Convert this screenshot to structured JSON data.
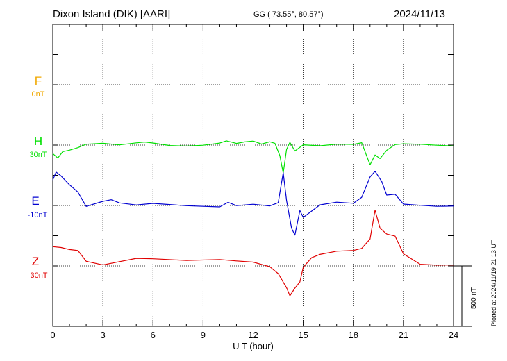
{
  "header": {
    "station": "Dixon Island (DIK)  [AARI]",
    "coords": "GG ( 73.55°,  80.57°)",
    "date": "2024/11/13"
  },
  "components": [
    {
      "name": "F",
      "baseline": "0nT",
      "color": "#f0a800"
    },
    {
      "name": "H",
      "baseline": "30nT",
      "color": "#00e000"
    },
    {
      "name": "E",
      "baseline": "-10nT",
      "color": "#0000d0"
    },
    {
      "name": "Z",
      "baseline": "30nT",
      "color": "#e00000"
    }
  ],
  "scale_label": "500 nT",
  "plotted_note": "Plotted at 2024/11/19 21:13 UT",
  "chart_data": {
    "type": "line",
    "xlabel": "U T (hour)",
    "xlim": [
      0,
      24
    ],
    "xticks": [
      "0",
      "3",
      "6",
      "9",
      "12",
      "15",
      "18",
      "21",
      "24"
    ],
    "grid": true,
    "series": [
      {
        "name": "F",
        "color": "#f0a800",
        "x": [],
        "y": []
      },
      {
        "name": "H",
        "color": "#00e000",
        "x": [
          0,
          0.3,
          0.6,
          1.0,
          1.5,
          2.0,
          3.0,
          4.0,
          5.0,
          5.5,
          6.0,
          7.0,
          8.0,
          9.0,
          10.0,
          10.4,
          11.0,
          11.5,
          12.0,
          12.5,
          13.0,
          13.3,
          13.6,
          13.8,
          14.0,
          14.2,
          14.5,
          15.0,
          16.0,
          17.0,
          18.0,
          18.5,
          19.0,
          19.3,
          19.6,
          20.0,
          20.5,
          21.0,
          22.0,
          23.0,
          24.0
        ],
        "y": [
          -70,
          -110,
          -60,
          -50,
          -30,
          0,
          10,
          0,
          20,
          30,
          25,
          5,
          0,
          5,
          20,
          35,
          10,
          20,
          25,
          0,
          20,
          10,
          -90,
          -230,
          -30,
          30,
          -40,
          10,
          0,
          10,
          5,
          15,
          -170,
          -90,
          -120,
          -50,
          0,
          10,
          10,
          5,
          0
        ]
      },
      {
        "name": "E",
        "color": "#0000d0",
        "x": [
          0,
          0.2,
          0.5,
          1.0,
          1.5,
          2.0,
          3.0,
          3.5,
          4.0,
          5.0,
          6.0,
          8.0,
          10.0,
          10.5,
          11.0,
          12.0,
          13.0,
          13.5,
          13.8,
          14.0,
          14.3,
          14.5,
          14.8,
          15.0,
          16.0,
          17.0,
          18.0,
          18.5,
          19.0,
          19.3,
          19.7,
          20.0,
          20.5,
          21.0,
          22.0,
          23.0,
          24.0
        ],
        "y": [
          210,
          280,
          250,
          180,
          120,
          0,
          40,
          50,
          20,
          0,
          10,
          -10,
          -20,
          20,
          -5,
          10,
          0,
          30,
          280,
          50,
          -180,
          -240,
          -40,
          -100,
          0,
          20,
          10,
          60,
          230,
          280,
          200,
          90,
          100,
          20,
          10,
          0,
          0
        ]
      },
      {
        "name": "Z",
        "color": "#e00000",
        "x": [
          0,
          0.5,
          1.0,
          1.5,
          2.0,
          3.0,
          4.0,
          5.0,
          6.0,
          8.0,
          10.0,
          11.0,
          12.0,
          13.0,
          13.5,
          14.0,
          14.2,
          14.5,
          14.8,
          15.0,
          15.5,
          16.0,
          17.0,
          18.0,
          18.5,
          19.0,
          19.3,
          19.6,
          20.0,
          20.5,
          21.0,
          22.0,
          23.0,
          24.0
        ],
        "y": [
          160,
          150,
          130,
          120,
          30,
          0,
          30,
          60,
          60,
          50,
          60,
          50,
          40,
          0,
          -60,
          -180,
          -250,
          -190,
          -140,
          -20,
          60,
          90,
          120,
          130,
          150,
          230,
          470,
          320,
          270,
          250,
          100,
          10,
          0,
          0
        ]
      }
    ]
  }
}
